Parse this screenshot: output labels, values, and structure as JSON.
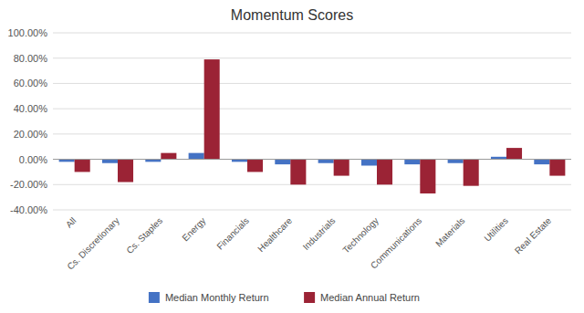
{
  "chart_data": {
    "type": "bar",
    "title": "Momentum Scores",
    "categories": [
      "All",
      "Cs. Discretionary",
      "Cs. Staples",
      "Energy",
      "Financials",
      "Healthcare",
      "Industrials",
      "Technology",
      "Communications",
      "Materials",
      "Utilities",
      "Real Estate"
    ],
    "series": [
      {
        "name": "Median Monthly Return",
        "color": "#4472C4",
        "values": [
          -0.02,
          -0.03,
          -0.02,
          0.05,
          -0.02,
          -0.04,
          -0.03,
          -0.05,
          -0.04,
          -0.03,
          0.02,
          -0.04
        ]
      },
      {
        "name": "Median Annual Return",
        "color": "#9B2335",
        "values": [
          -0.1,
          -0.18,
          0.05,
          0.79,
          -0.1,
          -0.2,
          -0.13,
          -0.2,
          -0.27,
          -0.21,
          0.09,
          -0.13
        ]
      }
    ],
    "ylim": [
      -0.4,
      1.0
    ],
    "yticks": [
      {
        "value": -0.4,
        "label": "-40.00%"
      },
      {
        "value": -0.2,
        "label": "-20.00%"
      },
      {
        "value": 0.0,
        "label": "0.00%"
      },
      {
        "value": 0.2,
        "label": "20.00%"
      },
      {
        "value": 0.4,
        "label": "40.00%"
      },
      {
        "value": 0.6,
        "label": "60.00%"
      },
      {
        "value": 0.8,
        "label": "80.00%"
      },
      {
        "value": 1.0,
        "label": "100.00%"
      }
    ],
    "grid": true,
    "legend": "bottom"
  }
}
